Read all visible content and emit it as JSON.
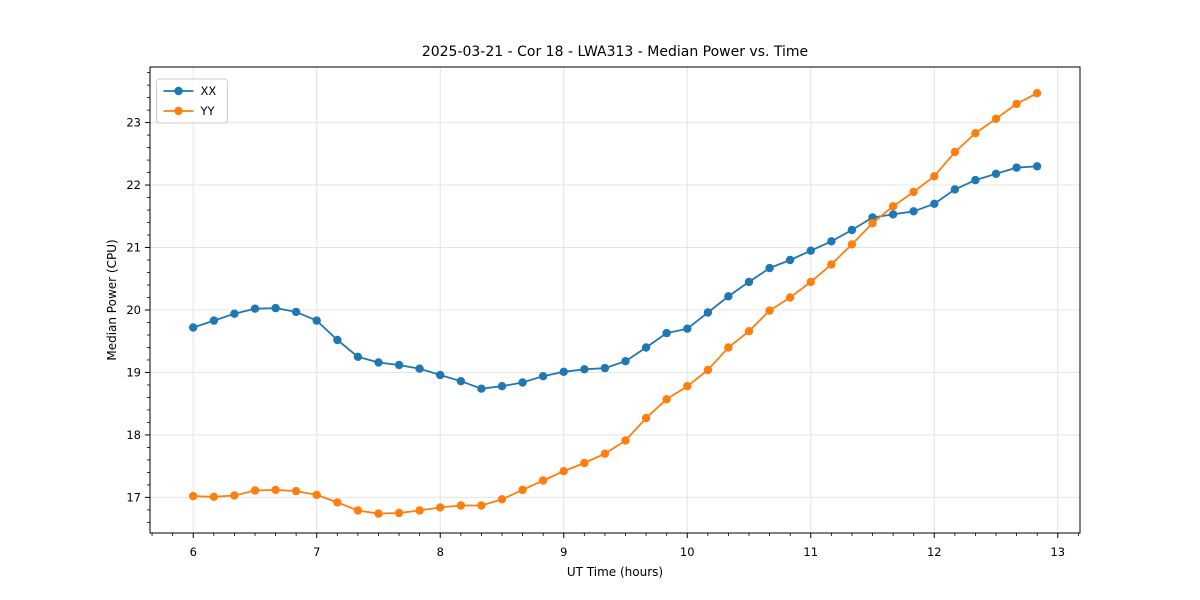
{
  "chart_data": {
    "type": "line",
    "title": "2025-03-21 - Cor 18 - LWA313 - Median Power vs. Time",
    "xlabel": "UT Time (hours)",
    "ylabel": "Median Power (CPU)",
    "xlim": [
      5.65,
      13.18
    ],
    "ylim": [
      16.43,
      23.89
    ],
    "xticks": [
      6,
      7,
      8,
      9,
      10,
      11,
      12,
      13
    ],
    "yticks": [
      17,
      18,
      19,
      20,
      21,
      22,
      23
    ],
    "x_minor_step": 0.1667,
    "y_minor_step": 0.2,
    "grid": true,
    "grid_color": "#e4e4e4",
    "legend_position": "upper left",
    "x": [
      6.0,
      6.167,
      6.333,
      6.5,
      6.667,
      6.833,
      7.0,
      7.167,
      7.333,
      7.5,
      7.667,
      7.833,
      8.0,
      8.167,
      8.333,
      8.5,
      8.667,
      8.833,
      9.0,
      9.167,
      9.333,
      9.5,
      9.667,
      9.833,
      10.0,
      10.167,
      10.333,
      10.5,
      10.667,
      10.833,
      11.0,
      11.167,
      11.333,
      11.5,
      11.667,
      11.833,
      12.0,
      12.167,
      12.333,
      12.5,
      12.667,
      12.833
    ],
    "series": [
      {
        "name": "XX",
        "color": "#1f77b4",
        "values": [
          19.72,
          19.83,
          19.94,
          20.02,
          20.03,
          19.97,
          19.83,
          19.52,
          19.25,
          19.16,
          19.12,
          19.06,
          18.96,
          18.86,
          18.74,
          18.78,
          18.84,
          18.94,
          19.01,
          19.05,
          19.07,
          19.18,
          19.4,
          19.63,
          19.7,
          19.96,
          20.22,
          20.45,
          20.67,
          20.8,
          20.95,
          21.1,
          21.28,
          21.48,
          21.53,
          21.58,
          21.7,
          21.93,
          22.08,
          22.18,
          22.28,
          22.3
        ]
      },
      {
        "name": "YY",
        "color": "#ff7f0e",
        "values": [
          17.02,
          17.01,
          17.03,
          17.11,
          17.12,
          17.1,
          17.04,
          16.92,
          16.79,
          16.74,
          16.75,
          16.79,
          16.84,
          16.87,
          16.87,
          16.97,
          17.12,
          17.27,
          17.42,
          17.55,
          17.7,
          17.91,
          18.27,
          18.57,
          18.78,
          19.04,
          19.4,
          19.66,
          19.99,
          20.2,
          20.45,
          20.73,
          21.05,
          21.39,
          21.66,
          21.89,
          22.14,
          22.53,
          22.83,
          23.06,
          23.3,
          23.47
        ]
      }
    ]
  }
}
